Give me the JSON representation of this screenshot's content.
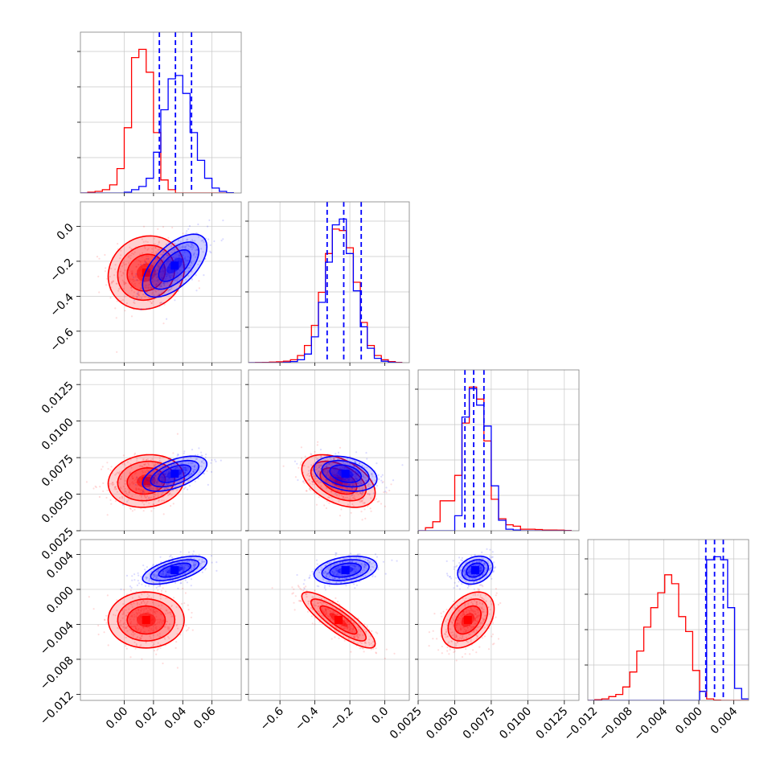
{
  "chart_data": {
    "type": "corner",
    "series_colors": {
      "red": "#ff0000",
      "blue": "#0000ff"
    },
    "grid": true,
    "parameters": [
      {
        "range": [
          -0.03,
          0.08
        ],
        "ticks": [
          0.0,
          0.02,
          0.04,
          0.06
        ],
        "tick_labels": [
          "0.00",
          "0.02",
          "0.04",
          "0.06"
        ]
      },
      {
        "range": [
          -0.78,
          0.14
        ],
        "ticks": [
          -0.6,
          -0.4,
          -0.2,
          0.0
        ],
        "tick_labels": [
          "−0.6",
          "−0.4",
          "−0.2",
          "0.0"
        ]
      },
      {
        "range": [
          0.0025,
          0.0135
        ],
        "ticks": [
          0.0025,
          0.005,
          0.0075,
          0.01,
          0.0125
        ],
        "tick_labels": [
          "0.0025",
          "0.0050",
          "0.0075",
          "0.0100",
          "0.0125"
        ]
      },
      {
        "range": [
          -0.0127,
          0.0057
        ],
        "ticks": [
          -0.012,
          -0.008,
          -0.004,
          0.0,
          0.004
        ],
        "tick_labels": [
          "−0.012",
          "−0.008",
          "−0.004",
          "0.000",
          "0.004"
        ]
      }
    ],
    "histograms": [
      {
        "param": 0,
        "bin_edges": [
          -0.03,
          -0.025,
          -0.02,
          -0.015,
          -0.01,
          -0.005,
          0.0,
          0.005,
          0.01,
          0.015,
          0.02,
          0.025,
          0.03,
          0.035,
          0.04,
          0.045,
          0.05,
          0.055,
          0.06,
          0.065,
          0.07,
          0.075
        ],
        "red": [
          0,
          5,
          10,
          20,
          50,
          150,
          400,
          830,
          880,
          740,
          370,
          80,
          20,
          0,
          0,
          0,
          0,
          0,
          0,
          0,
          0
        ],
        "blue": [
          0,
          0,
          0,
          0,
          0,
          0,
          5,
          20,
          40,
          90,
          250,
          510,
          700,
          720,
          610,
          370,
          200,
          90,
          30,
          10,
          2
        ],
        "blue_quantiles": [
          0.024,
          0.035,
          0.046
        ]
      },
      {
        "param": 1,
        "bin_edges": [
          -0.78,
          -0.74,
          -0.7,
          -0.66,
          -0.62,
          -0.58,
          -0.54,
          -0.5,
          -0.46,
          -0.42,
          -0.38,
          -0.34,
          -0.3,
          -0.26,
          -0.22,
          -0.18,
          -0.14,
          -0.1,
          -0.06,
          -0.02,
          0.02,
          0.06,
          0.1
        ],
        "red": [
          0,
          1,
          2,
          4,
          6,
          10,
          20,
          50,
          120,
          260,
          490,
          760,
          930,
          920,
          800,
          560,
          280,
          120,
          50,
          20,
          8,
          2
        ],
        "blue": [
          0,
          0,
          0,
          0,
          0,
          3,
          8,
          20,
          60,
          180,
          420,
          700,
          960,
          1000,
          760,
          500,
          250,
          100,
          30,
          10,
          3,
          0
        ],
        "blue_quantiles": [
          -0.33,
          -0.235,
          -0.135
        ]
      },
      {
        "param": 2,
        "bin_edges": [
          0.0025,
          0.003,
          0.0035,
          0.004,
          0.0045,
          0.005,
          0.0055,
          0.006,
          0.0065,
          0.007,
          0.0075,
          0.008,
          0.0085,
          0.009,
          0.0095,
          0.01,
          0.0105,
          0.011,
          0.0115,
          0.012,
          0.0125,
          0.013
        ],
        "red": [
          0,
          20,
          60,
          200,
          200,
          370,
          720,
          960,
          880,
          600,
          210,
          80,
          40,
          30,
          10,
          10,
          8,
          5,
          5,
          4,
          2
        ],
        "blue": [
          0,
          0,
          0,
          0,
          0,
          100,
          760,
          950,
          840,
          700,
          300,
          70,
          10,
          5,
          0,
          0,
          0,
          0,
          0,
          0,
          0
        ],
        "blue_quantiles": [
          0.0057,
          0.0063,
          0.007
        ]
      },
      {
        "param": 3,
        "bin_edges": [
          -0.0127,
          -0.0119,
          -0.0111,
          -0.0103,
          -0.0095,
          -0.0087,
          -0.0079,
          -0.0071,
          -0.0063,
          -0.0055,
          -0.0047,
          -0.0039,
          -0.0031,
          -0.0023,
          -0.0015,
          -0.0007,
          0.0001,
          0.0009,
          0.0017,
          0.0025,
          0.0033,
          0.0041,
          0.0049,
          0.0057
        ],
        "red": [
          0,
          5,
          10,
          25,
          40,
          90,
          190,
          330,
          490,
          620,
          720,
          840,
          780,
          560,
          460,
          200,
          60,
          10,
          2,
          0,
          0,
          0,
          0
        ],
        "blue": [
          0,
          0,
          0,
          0,
          0,
          0,
          0,
          0,
          0,
          0,
          0,
          0,
          0,
          0,
          0,
          0,
          60,
          940,
          960,
          940,
          620,
          80,
          10
        ]
      }
    ],
    "posteriors_2d": {
      "red": {
        "mean": [
          0.015,
          -0.265,
          0.0059,
          -0.0035
        ],
        "std": [
          0.013,
          0.105,
          0.0009,
          0.0016
        ]
      },
      "blue": {
        "mean": [
          0.0345,
          -0.225,
          0.0064,
          0.0022
        ],
        "std": [
          0.011,
          0.09,
          0.0006,
          0.0008
        ]
      },
      "correlations": {
        "red": [
          [
            1,
            0.1,
            0.1,
            0.0
          ],
          [
            0.1,
            1,
            -0.45,
            -0.85
          ],
          [
            0.1,
            -0.45,
            1,
            0.4
          ],
          [
            0.0,
            -0.85,
            0.4,
            1
          ]
        ],
        "blue": [
          [
            1,
            0.6,
            0.55,
            0.6
          ],
          [
            0.6,
            1,
            -0.3,
            0.3
          ],
          [
            0.55,
            -0.3,
            1,
            0.25
          ],
          [
            0.6,
            0.3,
            0.25,
            1
          ]
        ]
      }
    }
  }
}
